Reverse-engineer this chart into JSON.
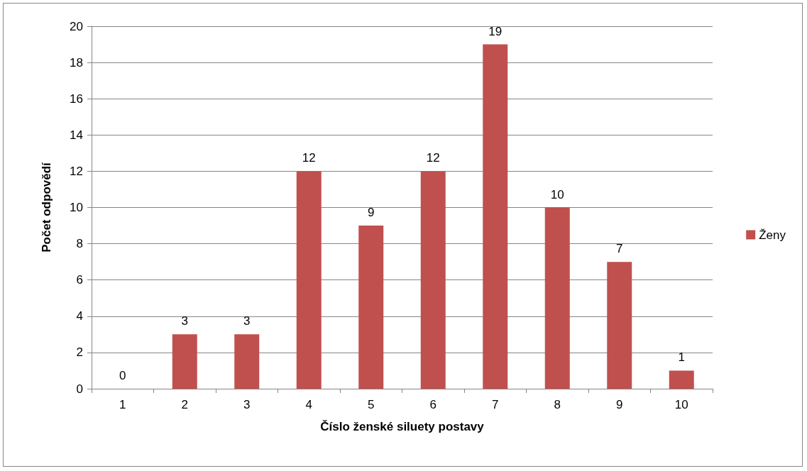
{
  "chart_data": {
    "type": "bar",
    "xlabel": "Číslo ženské siluety postavy",
    "ylabel": "Počet odpovědí",
    "categories": [
      "1",
      "2",
      "3",
      "4",
      "5",
      "6",
      "7",
      "8",
      "9",
      "10"
    ],
    "series": [
      {
        "name": "Ženy",
        "color": "#c0504d",
        "values": [
          0,
          3,
          3,
          12,
          9,
          12,
          19,
          10,
          7,
          1
        ]
      }
    ],
    "ylim": [
      0,
      20
    ],
    "yticks": [
      0,
      2,
      4,
      6,
      8,
      10,
      12,
      14,
      16,
      18,
      20
    ],
    "grid": "y",
    "legend": "right",
    "data_labels": true
  }
}
